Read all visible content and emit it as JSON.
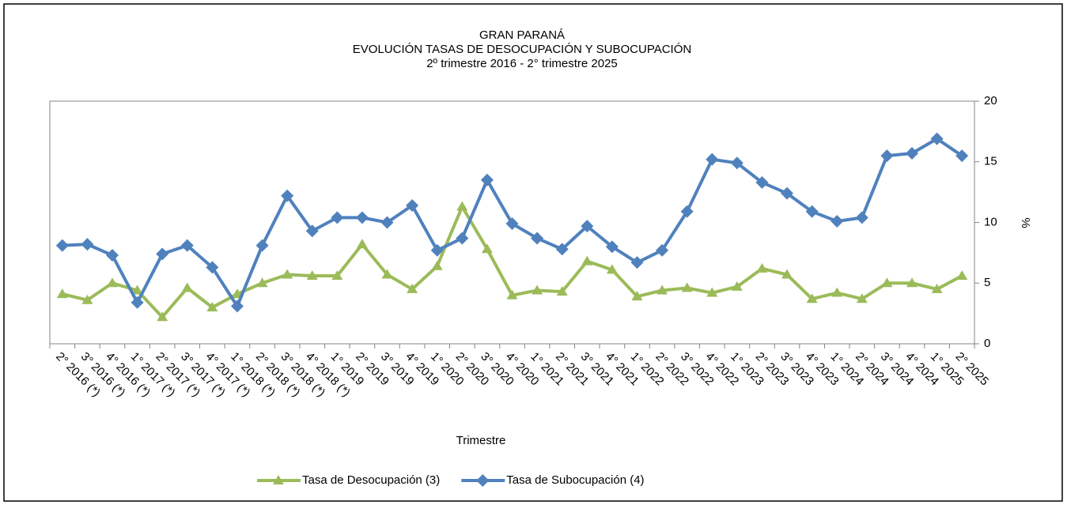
{
  "chart_data": {
    "type": "line",
    "title": "GRAN PARANÁ",
    "subtitle": "EVOLUCIÓN TASAS DE DESOCUPACIÓN Y SUBOCUPACIÓN",
    "subtitle2": "2º trimestre 2016 - 2° trimestre 2025",
    "x_label": "Trimestre",
    "y_label": "%",
    "categories": [
      "2° 2016 (*)",
      "3° 2016 (*)",
      "4° 2016 (*)",
      "1° 2017 (*)",
      "2° 2017 (*)",
      "3° 2017 (*)",
      "4° 2017 (*)",
      "1° 2018 (*)",
      "2° 2018 (*)",
      "3° 2018 (*)",
      "4° 2018 (*)",
      "1° 2019",
      "2° 2019",
      "3° 2019",
      "4° 2019",
      "1° 2020",
      "2° 2020",
      "3° 2020",
      "4° 2020",
      "1° 2021",
      "2° 2021",
      "3° 2021",
      "4° 2021",
      "1° 2022",
      "2° 2022",
      "3° 2022",
      "4° 2022",
      "1° 2023",
      "2° 2023",
      "3° 2023",
      "4° 2023",
      "1° 2024",
      "2° 2024",
      "3° 2024",
      "4° 2024",
      "1° 2025",
      "2° 2025"
    ],
    "series": [
      {
        "name": "Tasa de Desocupación (3)",
        "color": "#9bbb59",
        "marker": "triangle",
        "values": [
          4.1,
          3.6,
          5.0,
          4.4,
          2.2,
          4.6,
          3.0,
          4.1,
          5.0,
          5.7,
          5.6,
          5.6,
          8.2,
          5.7,
          4.5,
          6.4,
          11.3,
          7.8,
          4.0,
          4.4,
          4.3,
          6.8,
          6.1,
          3.9,
          4.4,
          4.6,
          4.2,
          4.7,
          6.2,
          5.7,
          3.7,
          4.2,
          3.7,
          5.0,
          5.0,
          4.5,
          5.6
        ]
      },
      {
        "name": "Tasa de Subocupación (4)",
        "color": "#4f81bd",
        "marker": "diamond",
        "values": [
          8.1,
          8.2,
          7.3,
          3.4,
          7.4,
          8.1,
          6.3,
          3.1,
          8.1,
          12.2,
          9.3,
          10.4,
          10.4,
          10.0,
          11.4,
          7.7,
          8.7,
          13.5,
          9.9,
          8.7,
          7.8,
          9.7,
          8.0,
          6.7,
          7.7,
          10.9,
          15.2,
          14.9,
          13.3,
          12.4,
          10.9,
          10.1,
          10.4,
          15.5,
          15.7,
          16.9,
          15.5
        ]
      }
    ],
    "ylim": [
      0,
      20
    ],
    "yticks": [
      0,
      5,
      10,
      15,
      20
    ],
    "y_axis_side": "right",
    "legend": "bottom"
  }
}
